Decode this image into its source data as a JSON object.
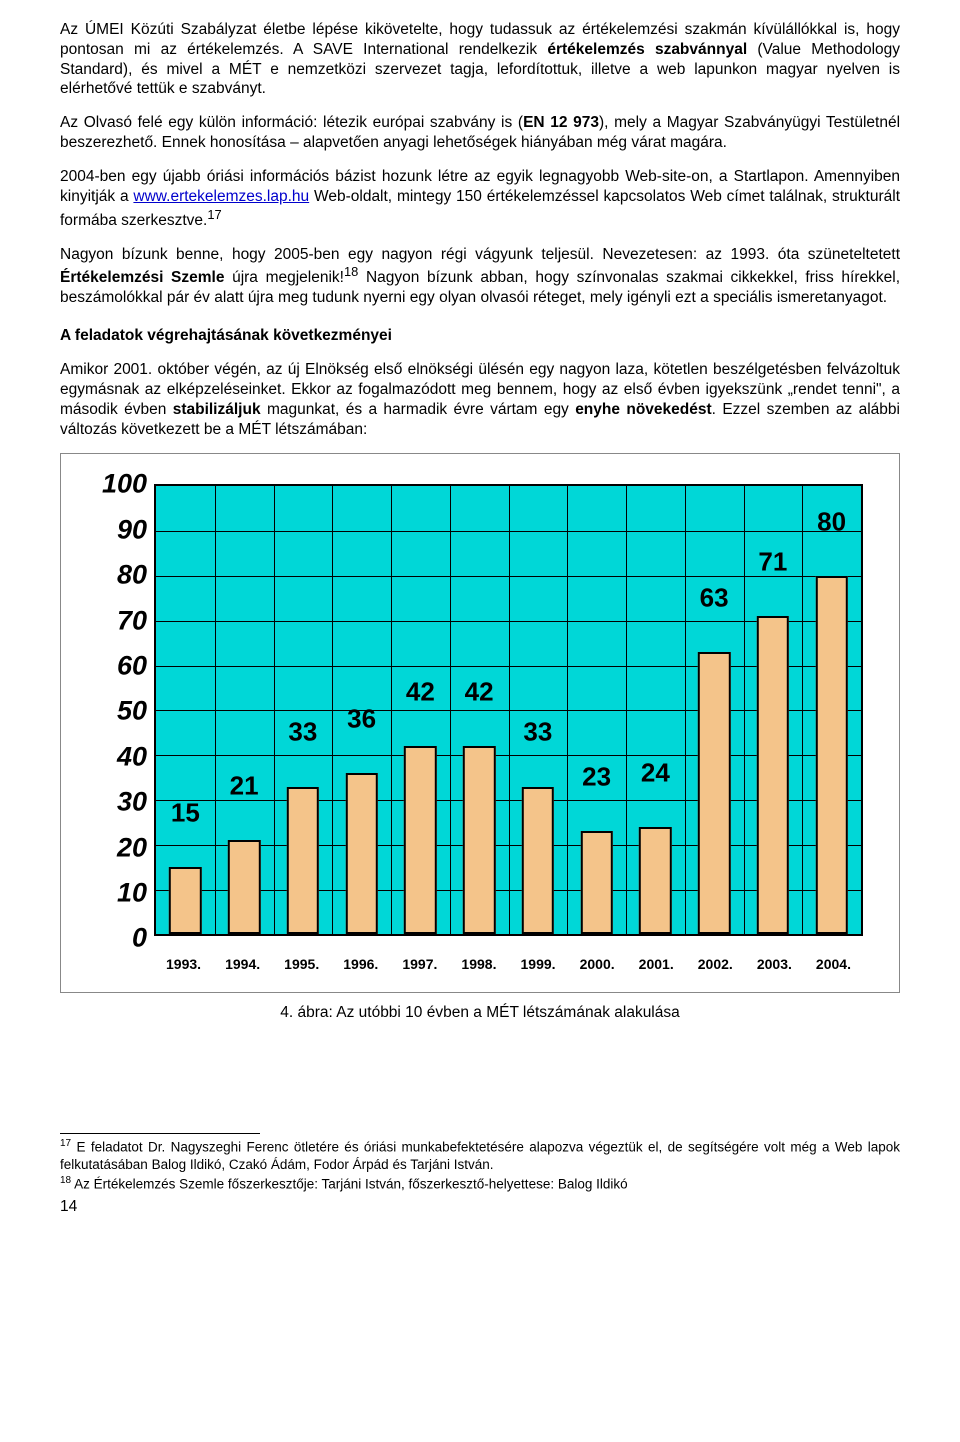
{
  "paragraphs": {
    "p1_a": "Az ÚMEI Közúti Szabályzat életbe lépése kikövetelte, hogy tudassuk az értékelemzési szakmán kívülállókkal is, hogy pontosan mi az értékelemzés. A SAVE International rendelkezik ",
    "p1_b": "értékelemzés szabvánnyal",
    "p1_c": " (Value Methodology Standard), és mivel a MÉT e nemzetközi szervezet tagja, lefordítottuk, illetve a web lapunkon magyar nyelven is elérhetővé tettük e szabványt.",
    "p2_a": "Az Olvasó felé egy külön információ: létezik európai szabvány is (",
    "p2_b": "EN 12 973",
    "p2_c": "), mely a Magyar Szabványügyi Testületnél beszerezhető. Ennek honosítása – alapvetően anyagi lehetőségek hiányában még várat magára.",
    "p3_a": "2004-ben egy újabb óriási információs bázist hozunk létre az egyik legnagyobb Web-site-on, a Startlapon. Amennyiben kinyitják a ",
    "p3_link": "www.ertekelemzes.lap.hu",
    "p3_b": " Web-oldalt, mintegy 150 értékelemzéssel kapcsolatos Web címet találnak, strukturált formába szerkesztve.",
    "p3_sup": "17",
    "p4_a": "Nagyon bízunk benne, hogy 2005-ben egy nagyon régi vágyunk teljesül. Nevezetesen: az 1993. óta szüneteltetett ",
    "p4_b": "Értékelemzési Szemle",
    "p4_c": " újra megjelenik!",
    "p4_sup": "18",
    "p4_d": " Nagyon bízunk abban, hogy színvonalas szakmai cikkekkel, friss hírekkel, beszámolókkal pár év alatt újra meg tudunk nyerni egy olyan olvasói réteget, mely igényli ezt a speciális ismeretanyagot.",
    "h1": "A feladatok végrehajtásának következményei",
    "p5_a": "Amikor 2001. október végén, az új Elnökség első elnökségi ülésén egy nagyon laza, kötetlen beszélgetésben felvázoltuk egymásnak az elképzeléseinket. Ekkor az fogalmazódott meg bennem, hogy az első évben igyekszünk „rendet tenni\", a második évben ",
    "p5_b": "stabilizáljuk",
    "p5_c": " magunkat, és a harmadik évre vártam egy ",
    "p5_d": "enyhe növekedést",
    "p5_e": ". Ezzel szemben az alábbi változás következett be a MÉT létszámában:"
  },
  "chart": {
    "type": "bar",
    "background_color": "#ffffff",
    "plot_bg": "#00d7d7",
    "bar_fill": "#f4c48a",
    "bar_width_pct": 4.6,
    "categories": [
      "1993.",
      "1994.",
      "1995.",
      "1996.",
      "1997.",
      "1998.",
      "1999.",
      "2000.",
      "2001.",
      "2002.",
      "2003.",
      "2004."
    ],
    "values": [
      15,
      21,
      33,
      36,
      42,
      42,
      33,
      23,
      24,
      63,
      71,
      80
    ],
    "ymax": 100,
    "ytick_step": 10,
    "ylabel_fontsize": 27,
    "barlabel_fontsize": 26,
    "xlabel_fontsize": 14
  },
  "caption": "4. ábra: Az utóbbi 10 évben a MÉT létszámának alakulása",
  "footnotes": {
    "f17_num": "17",
    "f17": " E feladatot Dr. Nagyszeghi Ferenc ötletére és óriási munkabefektetésére alapozva végeztük el, de segítségére volt még a Web lapok felkutatásában Balog Ildikó, Czakó Ádám, Fodor Árpád és Tarjáni István.",
    "f18_num": "18",
    "f18": " Az Értékelemzés Szemle főszerkesztője: Tarjáni István, főszerkesztő-helyettese: Balog Ildikó"
  },
  "pagenum": "14"
}
